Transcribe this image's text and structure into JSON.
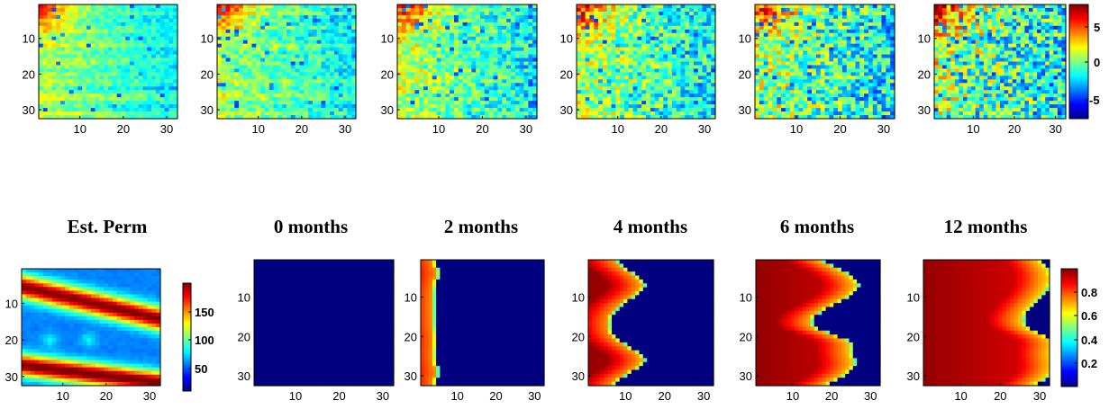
{
  "colormap": "jet",
  "top_row": {
    "ticks": {
      "x": [
        10,
        20,
        30
      ],
      "y": [
        10,
        20,
        30
      ]
    },
    "colorbar": {
      "range": [
        -7.5,
        7.5
      ],
      "ticks": [
        5,
        0,
        -5
      ],
      "tick_labels": [
        "5",
        "0",
        "-5"
      ]
    }
  },
  "titles": [
    "Est. Perm",
    "0 months",
    "2 months",
    "4 months",
    "6 months",
    "12 months"
  ],
  "bottom_colorbars": [
    {
      "range": [
        0,
        190
      ],
      "ticks": [
        150,
        100,
        50
      ],
      "tick_labels": [
        "150",
        "100",
        "50"
      ]
    },
    {
      "range": [
        0,
        1
      ],
      "ticks": [
        0.8,
        0.6,
        0.4,
        0.2
      ],
      "tick_labels": [
        "0.8",
        "0.6",
        "0.4",
        "0.2"
      ]
    }
  ],
  "chart_data": [
    {
      "type": "heatmap",
      "grid": [
        32,
        32
      ],
      "ylim": [
        32,
        1
      ],
      "xticks": [
        10,
        20,
        30
      ],
      "yticks": [
        10,
        20,
        30
      ],
      "clim": [
        -7.5,
        7.5
      ]
    },
    {
      "type": "heatmap",
      "grid": [
        32,
        32
      ],
      "ylim": [
        32,
        1
      ],
      "xticks": [
        10,
        20,
        30
      ],
      "yticks": [
        10,
        20,
        30
      ],
      "clim": [
        -7.5,
        7.5
      ]
    },
    {
      "type": "heatmap",
      "grid": [
        32,
        32
      ],
      "ylim": [
        32,
        1
      ],
      "xticks": [
        10,
        20,
        30
      ],
      "yticks": [
        10,
        20,
        30
      ],
      "clim": [
        -7.5,
        7.5
      ]
    },
    {
      "type": "heatmap",
      "grid": [
        32,
        32
      ],
      "ylim": [
        32,
        1
      ],
      "xticks": [
        10,
        20,
        30
      ],
      "yticks": [
        10,
        20,
        30
      ],
      "clim": [
        -7.5,
        7.5
      ]
    },
    {
      "type": "heatmap",
      "grid": [
        32,
        32
      ],
      "ylim": [
        32,
        1
      ],
      "xticks": [
        10,
        20,
        30
      ],
      "yticks": [
        10,
        20,
        30
      ],
      "clim": [
        -7.5,
        7.5
      ]
    },
    {
      "type": "heatmap",
      "grid": [
        32,
        32
      ],
      "ylim": [
        32,
        1
      ],
      "xticks": [
        10,
        20,
        30
      ],
      "yticks": [
        10,
        20,
        30
      ],
      "clim": [
        -7.5,
        7.5
      ]
    },
    {
      "type": "heatmap",
      "title": "Est. Perm",
      "grid": [
        32,
        32
      ],
      "ylim": [
        32,
        1
      ],
      "xticks": [
        10,
        20,
        30
      ],
      "yticks": [
        10,
        20,
        30
      ],
      "clim": [
        0,
        190
      ]
    },
    {
      "type": "heatmap",
      "title": "0 months",
      "grid": [
        32,
        32
      ],
      "ylim": [
        32,
        1
      ],
      "xticks": [
        10,
        20,
        30
      ],
      "yticks": [
        10,
        20,
        30
      ],
      "clim": [
        0,
        1
      ],
      "front_extent": 0
    },
    {
      "type": "heatmap",
      "title": "2 months",
      "grid": [
        32,
        32
      ],
      "ylim": [
        32,
        1
      ],
      "xticks": [
        10,
        20,
        30
      ],
      "yticks": [
        10,
        20,
        30
      ],
      "clim": [
        0,
        1
      ]
    },
    {
      "type": "heatmap",
      "title": "4 months",
      "grid": [
        32,
        32
      ],
      "ylim": [
        32,
        1
      ],
      "xticks": [
        10,
        20,
        30
      ],
      "yticks": [
        10,
        20,
        30
      ],
      "clim": [
        0,
        1
      ]
    },
    {
      "type": "heatmap",
      "title": "6 months",
      "grid": [
        32,
        32
      ],
      "ylim": [
        32,
        1
      ],
      "xticks": [
        10,
        20,
        30
      ],
      "yticks": [
        10,
        20,
        30
      ],
      "clim": [
        0,
        1
      ]
    },
    {
      "type": "heatmap",
      "title": "12 months",
      "grid": [
        32,
        32
      ],
      "ylim": [
        32,
        1
      ],
      "xticks": [
        10,
        20,
        30
      ],
      "yticks": [
        10,
        20,
        30
      ],
      "clim": [
        0,
        1
      ]
    }
  ]
}
